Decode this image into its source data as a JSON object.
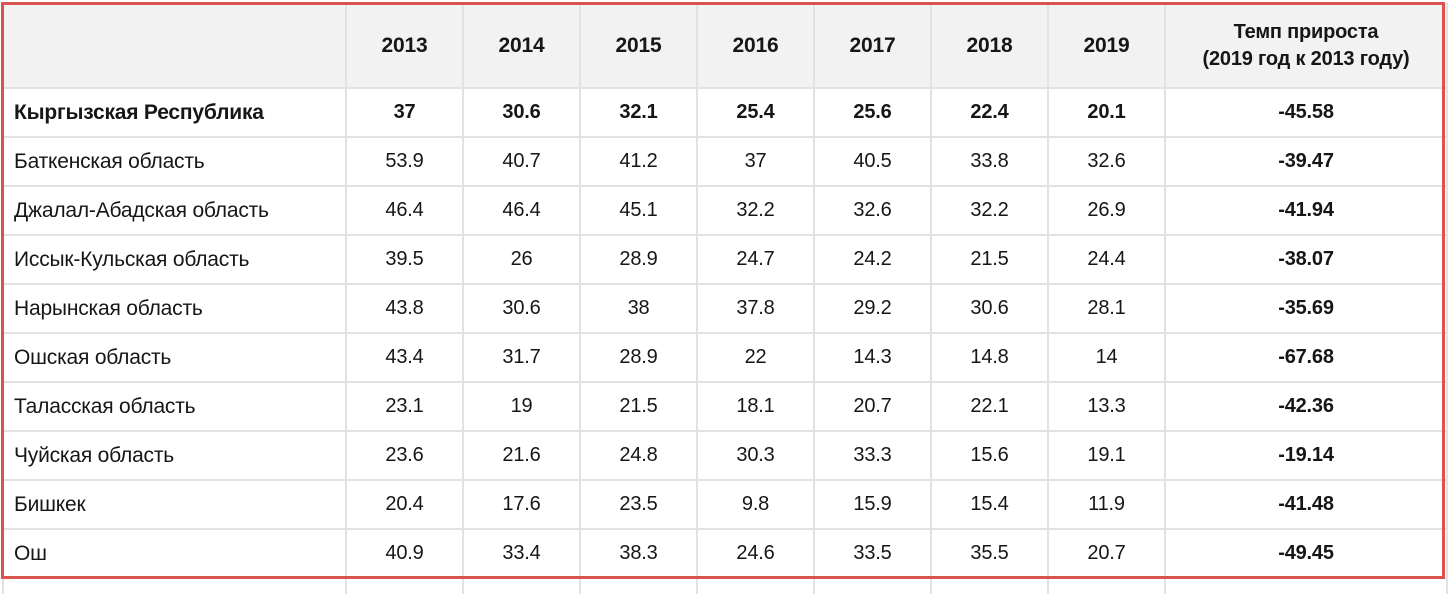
{
  "theme": {
    "highlight_border_color": "#d9534f",
    "header_bg": "#f2f2f2",
    "grid_color": "#e2e2e2",
    "row_bg": "#ffffff",
    "text_color": "#161616"
  },
  "chart_data": {
    "type": "table",
    "title": "",
    "columns": [
      "",
      "2013",
      "2014",
      "2015",
      "2016",
      "2017",
      "2018",
      "2019",
      "Темп прироста\n(2019 год к 2013 году)"
    ],
    "rows": [
      {
        "label": "Кыргызская Республика",
        "values": [
          37,
          30.6,
          32.1,
          25.4,
          25.6,
          22.4,
          20.1
        ],
        "growth": -45.58,
        "bold": true
      },
      {
        "label": "Баткенская область",
        "values": [
          53.9,
          40.7,
          41.2,
          37,
          40.5,
          33.8,
          32.6
        ],
        "growth": -39.47,
        "bold": false
      },
      {
        "label": "Джалал-Абадская область",
        "values": [
          46.4,
          46.4,
          45.1,
          32.2,
          32.6,
          32.2,
          26.9
        ],
        "growth": -41.94,
        "bold": false
      },
      {
        "label": "Иссык-Кульская область",
        "values": [
          39.5,
          26,
          28.9,
          24.7,
          24.2,
          21.5,
          24.4
        ],
        "growth": -38.07,
        "bold": false
      },
      {
        "label": "Нарынская область",
        "values": [
          43.8,
          30.6,
          38,
          37.8,
          29.2,
          30.6,
          28.1
        ],
        "growth": -35.69,
        "bold": false
      },
      {
        "label": "Ошская область",
        "values": [
          43.4,
          31.7,
          28.9,
          22,
          14.3,
          14.8,
          14
        ],
        "growth": -67.68,
        "bold": false
      },
      {
        "label": "Таласская область",
        "values": [
          23.1,
          19,
          21.5,
          18.1,
          20.7,
          22.1,
          13.3
        ],
        "growth": -42.36,
        "bold": false
      },
      {
        "label": "Чуйская область",
        "values": [
          23.6,
          21.6,
          24.8,
          30.3,
          33.3,
          15.6,
          19.1
        ],
        "growth": -19.14,
        "bold": false
      },
      {
        "label": "Бишкек",
        "values": [
          20.4,
          17.6,
          23.5,
          9.8,
          15.9,
          15.4,
          11.9
        ],
        "growth": -41.48,
        "bold": false
      },
      {
        "label": "Ош",
        "values": [
          40.9,
          33.4,
          38.3,
          24.6,
          33.5,
          35.5,
          20.7
        ],
        "growth": -49.45,
        "bold": false
      }
    ]
  }
}
